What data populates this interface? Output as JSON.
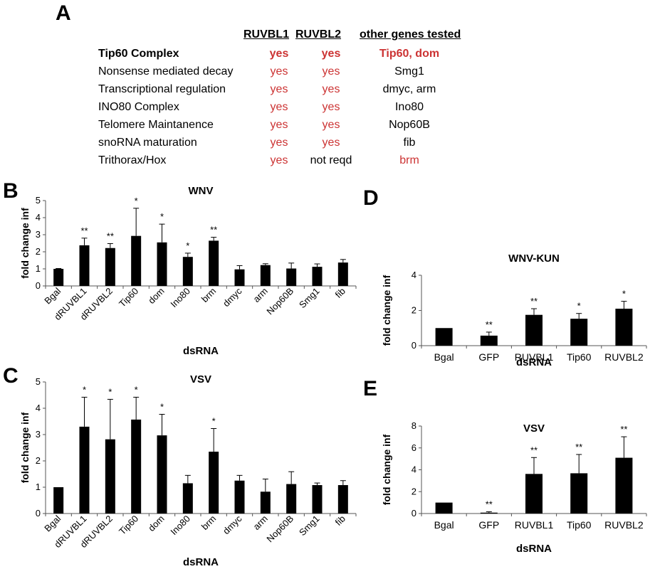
{
  "panels": {
    "A": "A",
    "B": "B",
    "C": "C",
    "D": "D",
    "E": "E"
  },
  "table": {
    "headers": [
      "RUVBL1",
      "RUVBL2",
      "other genes tested"
    ],
    "rows": [
      {
        "pathway": "Tip60 Complex",
        "ruvbl1": "yes",
        "ruvbl2": "yes",
        "other": "Tip60, dom",
        "bold": true,
        "ruvbl2_red": true,
        "other_red": true
      },
      {
        "pathway": "Nonsense mediated decay",
        "ruvbl1": "yes",
        "ruvbl2": "yes",
        "other": "Smg1",
        "bold": false,
        "ruvbl2_red": true,
        "other_red": false
      },
      {
        "pathway": "Transcriptional regulation",
        "ruvbl1": "yes",
        "ruvbl2": "yes",
        "other": "dmyc, arm",
        "bold": false,
        "ruvbl2_red": true,
        "other_red": false
      },
      {
        "pathway": "INO80 Complex",
        "ruvbl1": "yes",
        "ruvbl2": "yes",
        "other": "Ino80",
        "bold": false,
        "ruvbl2_red": true,
        "other_red": false
      },
      {
        "pathway": "Telomere Maintanence",
        "ruvbl1": "yes",
        "ruvbl2": "yes",
        "other": "Nop60B",
        "bold": false,
        "ruvbl2_red": true,
        "other_red": false
      },
      {
        "pathway": "snoRNA maturation",
        "ruvbl1": "yes",
        "ruvbl2": "yes",
        "other": "fib",
        "bold": false,
        "ruvbl2_red": true,
        "other_red": false
      },
      {
        "pathway": "Trithorax/Hox",
        "ruvbl1": "yes",
        "ruvbl2": "not reqd",
        "other": "brm",
        "bold": false,
        "ruvbl2_red": false,
        "other_red": true
      }
    ],
    "colors": {
      "red": "#cc3333",
      "black": "#000000"
    }
  },
  "chart_data": [
    {
      "panel": "B",
      "type": "bar",
      "title": "WNV",
      "xlabel": "dsRNA",
      "ylabel": "fold change inf",
      "ylim": [
        0,
        5
      ],
      "yticks": [
        0,
        1,
        2,
        3,
        4,
        5
      ],
      "categories": [
        "Bgal",
        "dRUVBL1",
        "dRUVBL2",
        "Tip60",
        "dom",
        "Ino80",
        "brm",
        "dmyc",
        "arm",
        "Nop60B",
        "Smg1",
        "fib"
      ],
      "values": [
        1.0,
        2.38,
        2.22,
        2.93,
        2.55,
        1.7,
        2.65,
        0.97,
        1.22,
        1.02,
        1.12,
        1.37
      ],
      "errors": [
        0.02,
        0.42,
        0.26,
        1.62,
        1.07,
        0.22,
        0.2,
        0.22,
        0.08,
        0.32,
        0.17,
        0.18
      ],
      "significance": [
        "",
        "**",
        "**",
        "*",
        "*",
        "*",
        "**",
        "",
        "",
        "",
        "",
        ""
      ]
    },
    {
      "panel": "C",
      "type": "bar",
      "title": "VSV",
      "xlabel": "dsRNA",
      "ylabel": "fold change inf",
      "ylim": [
        0,
        5
      ],
      "yticks": [
        0,
        1,
        2,
        3,
        4,
        5
      ],
      "categories": [
        "Bgal",
        "dRUVBL1",
        "dRUVBL2",
        "Tip60",
        "dom",
        "Ino80",
        "brm",
        "dmyc",
        "arm",
        "Nop60B",
        "Smg1",
        "fib"
      ],
      "values": [
        1.0,
        3.3,
        2.82,
        3.57,
        2.97,
        1.15,
        2.35,
        1.25,
        0.83,
        1.12,
        1.08,
        1.08
      ],
      "errors": [
        0.0,
        1.12,
        1.52,
        0.85,
        0.8,
        0.3,
        0.88,
        0.2,
        0.48,
        0.47,
        0.08,
        0.17
      ],
      "significance": [
        "",
        "*",
        "*",
        "*",
        "*",
        "",
        "*",
        "",
        "",
        "",
        "",
        ""
      ]
    },
    {
      "panel": "D",
      "type": "bar",
      "title": "WNV-KUN",
      "xlabel": "dsRNA",
      "ylabel": "fold change inf",
      "ylim": [
        0,
        4
      ],
      "yticks": [
        0,
        2,
        4
      ],
      "categories": [
        "Bgal",
        "GFP",
        "RUVBL1",
        "Tip60",
        "RUVBL2"
      ],
      "values": [
        1.0,
        0.57,
        1.75,
        1.53,
        2.1
      ],
      "errors": [
        0.0,
        0.2,
        0.35,
        0.3,
        0.42
      ],
      "significance": [
        "",
        "**",
        "**",
        "*",
        "*"
      ]
    },
    {
      "panel": "E",
      "type": "bar",
      "title": "VSV",
      "xlabel": "dsRNA",
      "ylabel": "fold change inf",
      "ylim": [
        0,
        8
      ],
      "yticks": [
        0,
        2,
        4,
        6,
        8
      ],
      "categories": [
        "Bgal",
        "GFP",
        "RUVBL1",
        "Tip60",
        "RUVBL2"
      ],
      "values": [
        1.0,
        0.08,
        3.62,
        3.68,
        5.1
      ],
      "errors": [
        0.0,
        0.08,
        1.5,
        1.72,
        1.92
      ],
      "significance": [
        "",
        "**",
        "**",
        "**",
        "**"
      ]
    }
  ]
}
